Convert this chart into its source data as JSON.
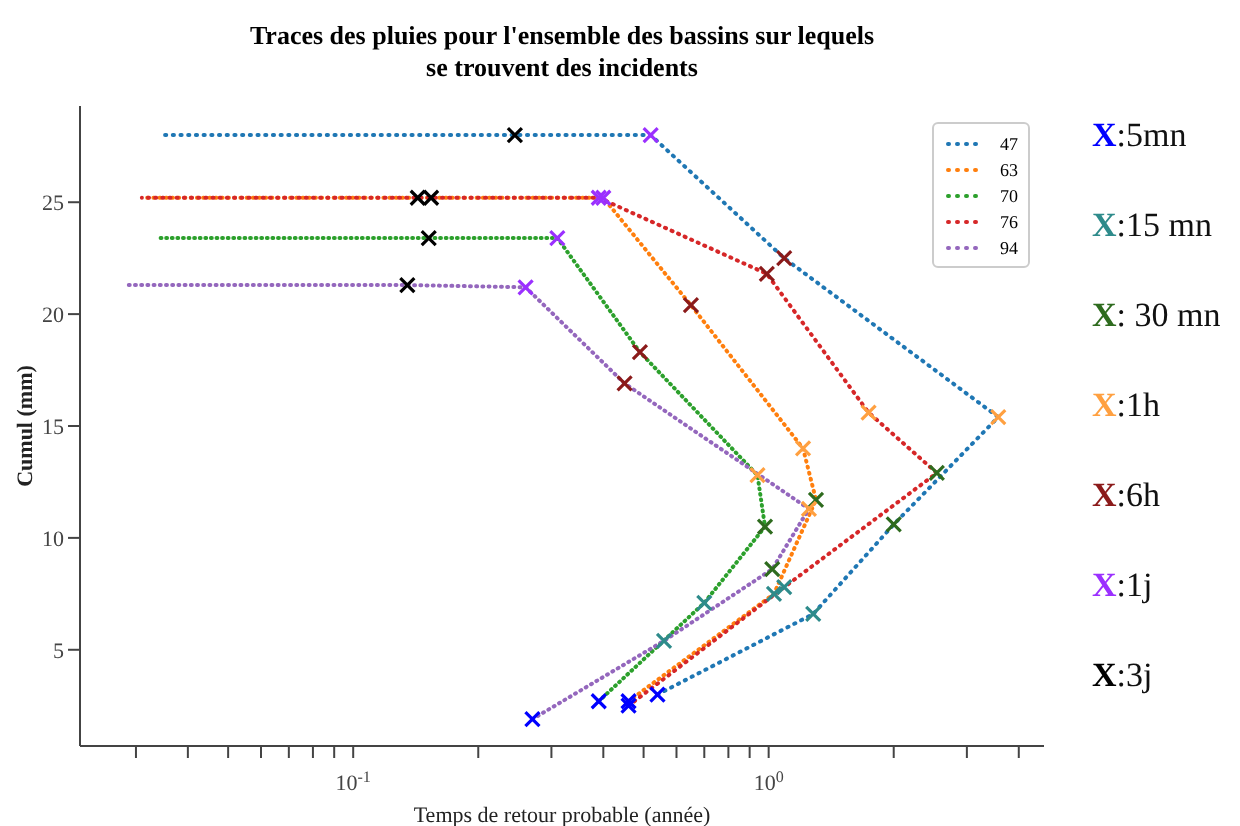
{
  "chart_data": {
    "type": "line",
    "title": "Traces des pluies pour l'ensemble des bassins sur lequels\nse trouvent des incidents",
    "xlabel": "Temps de retour probable (année)",
    "ylabel": "Cumul (mm)",
    "log": "x",
    "grid": false,
    "legend": "top right",
    "line_style": "dotted",
    "xlim": [
      0.022,
      4.6
    ],
    "xticks": [
      {
        "value": 0.03,
        "label": null
      },
      {
        "value": 0.04,
        "label": null
      },
      {
        "value": 0.05,
        "label": null
      },
      {
        "value": 0.06,
        "label": null
      },
      {
        "value": 0.07,
        "label": null
      },
      {
        "value": 0.08,
        "label": null
      },
      {
        "value": 0.09,
        "label": null
      },
      {
        "value": 0.1,
        "label": "10$^{-1}$"
      },
      {
        "value": 0.2,
        "label": null
      },
      {
        "value": 0.3,
        "label": null
      },
      {
        "value": 0.4,
        "label": null
      },
      {
        "value": 0.5,
        "label": null
      },
      {
        "value": 0.6,
        "label": null
      },
      {
        "value": 0.7,
        "label": null
      },
      {
        "value": 0.8,
        "label": null
      },
      {
        "value": 0.9,
        "label": null
      },
      {
        "value": 1,
        "label": "10$^{0}$"
      },
      {
        "value": 2,
        "label": null
      },
      {
        "value": 3,
        "label": null
      },
      {
        "value": 4,
        "label": null
      }
    ],
    "ylim": [
      0.7,
      29.3
    ],
    "yticks": [
      5,
      10,
      15,
      20,
      25
    ],
    "series": [
      {
        "type": "line",
        "name": "47",
        "color": "#1f77b4",
        "marker": "none",
        "x": [
          0.034,
          0.245,
          0.52,
          1.09,
          3.57,
          2.0,
          1.28,
          0.54
        ],
        "values": [
          28.0,
          28.0,
          28.0,
          22.5,
          15.4,
          10.6,
          6.6,
          3.0
        ]
      },
      {
        "type": "line",
        "name": "63",
        "color": "#ff7f0e",
        "marker": "none",
        "x": [
          0.031,
          0.154,
          0.4,
          0.65,
          1.21,
          1.3,
          1.03,
          0.46
        ],
        "values": [
          25.2,
          25.2,
          25.2,
          20.4,
          14.0,
          11.7,
          7.5,
          2.7
        ]
      },
      {
        "type": "line",
        "name": "70",
        "color": "#2ca02c",
        "marker": "none",
        "x": [
          0.0335,
          0.152,
          0.31,
          0.49,
          0.94,
          0.98,
          0.7,
          0.39
        ],
        "values": [
          23.4,
          23.4,
          23.4,
          18.3,
          12.8,
          10.5,
          7.1,
          2.7
        ]
      },
      {
        "type": "line",
        "name": "76",
        "color": "#d62728",
        "marker": "none",
        "x": [
          0.031,
          0.143,
          0.39,
          0.99,
          1.74,
          2.54,
          1.09,
          0.46
        ],
        "values": [
          25.2,
          25.2,
          25.2,
          21.8,
          15.6,
          12.9,
          7.8,
          2.5
        ]
      },
      {
        "type": "line",
        "name": "94",
        "color": "#9467bd",
        "marker": "none",
        "x": [
          0.028,
          0.135,
          0.26,
          0.45,
          1.25,
          1.02,
          0.56,
          0.27
        ],
        "values": [
          21.3,
          21.3,
          21.2,
          16.9,
          11.3,
          8.6,
          5.4,
          1.9
        ]
      },
      {
        "type": "scatter",
        "name": "X:5mn",
        "color": "#0000ff",
        "marker": "cross",
        "x": [
          0.54,
          0.46,
          0.39,
          0.46,
          0.27
        ],
        "values": [
          3.0,
          2.7,
          2.7,
          2.5,
          1.9
        ]
      },
      {
        "type": "scatter",
        "name": "X:15 mn",
        "color": "#2e8b8b",
        "marker": "cross",
        "x": [
          1.28,
          1.03,
          0.7,
          1.09,
          0.56
        ],
        "values": [
          6.6,
          7.5,
          7.1,
          7.8,
          5.4
        ]
      },
      {
        "type": "scatter",
        "name": "X: 30 mn",
        "color": "#2e6b1e",
        "marker": "cross",
        "x": [
          2.0,
          1.3,
          0.98,
          2.54,
          1.02
        ],
        "values": [
          10.6,
          11.7,
          10.5,
          12.9,
          8.6
        ]
      },
      {
        "type": "scatter",
        "name": "X:1h",
        "color": "#ffa040",
        "marker": "cross",
        "x": [
          3.57,
          1.21,
          0.94,
          1.74,
          1.25
        ],
        "values": [
          15.4,
          14.0,
          12.8,
          15.6,
          11.3
        ]
      },
      {
        "type": "scatter",
        "name": "X:6h",
        "color": "#8b1a1a",
        "marker": "cross",
        "x": [
          1.09,
          0.65,
          0.49,
          0.99,
          0.45
        ],
        "values": [
          22.5,
          20.4,
          18.3,
          21.8,
          16.9
        ]
      },
      {
        "type": "scatter",
        "name": "X:1j",
        "color": "#9b30ff",
        "marker": "cross",
        "x": [
          0.52,
          0.4,
          0.31,
          0.39,
          0.26
        ],
        "values": [
          28.0,
          25.2,
          23.4,
          25.2,
          21.2
        ]
      },
      {
        "type": "scatter",
        "name": "X:3j",
        "color": "#000000",
        "marker": "cross",
        "x": [
          0.245,
          0.154,
          0.152,
          0.143,
          0.135
        ],
        "values": [
          28.0,
          25.2,
          23.4,
          25.2,
          21.3
        ]
      }
    ]
  }
}
